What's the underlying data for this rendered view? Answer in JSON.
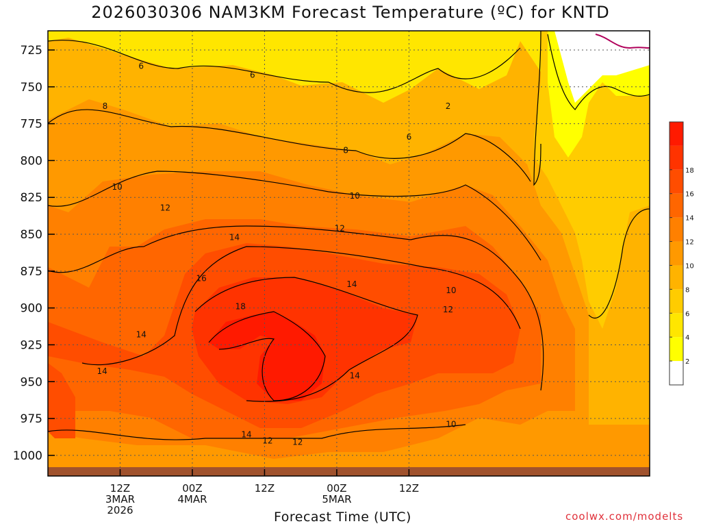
{
  "title": "2026030306 NAM3KM Forecast Temperature (ºC) for KNTD",
  "xaxis_title": "Forecast Time (UTC)",
  "credit": "coolwx.com/modelts",
  "colors": {
    "legend": [
      "#ffffff",
      "#ffff00",
      "#ffe600",
      "#ffcc00",
      "#ffb300",
      "#ff9900",
      "#ff8000",
      "#ff6600",
      "#ff4d00",
      "#ff3300",
      "#ff1a00"
    ],
    "ground": "#a0522d",
    "contour": "#000000",
    "freezing_line": "#b0005a"
  },
  "chart_data": {
    "type": "heatmap",
    "title": "2026030306 NAM3KM Forecast Temperature (ºC) for KNTD",
    "xlabel": "Forecast Time (UTC)",
    "ylabel": "",
    "y_axis": {
      "ticks": [
        725,
        750,
        775,
        800,
        825,
        850,
        875,
        900,
        925,
        950,
        975,
        1000
      ],
      "range": [
        712,
        1014
      ],
      "inverted": true
    },
    "x_axis": {
      "range_hours": [
        -6,
        94
      ],
      "ticks": [
        {
          "hour": 6,
          "lines": [
            "12Z",
            "3MAR",
            "2026"
          ]
        },
        {
          "hour": 18,
          "lines": [
            "00Z",
            "4MAR"
          ]
        },
        {
          "hour": 30,
          "lines": [
            "12Z"
          ]
        },
        {
          "hour": 42,
          "lines": [
            "00Z",
            "5MAR"
          ]
        },
        {
          "hour": 54,
          "lines": [
            "12Z"
          ]
        }
      ]
    },
    "grid": true,
    "legend": {
      "placement": "right",
      "labels": [
        "2",
        "4",
        "6",
        "8",
        "10",
        "12",
        "14",
        "16",
        "18"
      ]
    },
    "contour_labels": [
      {
        "text": "6",
        "hour": 9.5,
        "p": 736
      },
      {
        "text": "6",
        "hour": 28,
        "p": 742
      },
      {
        "text": "8",
        "hour": 3.5,
        "p": 763
      },
      {
        "text": "2",
        "hour": 60.5,
        "p": 763
      },
      {
        "text": "6",
        "hour": 54,
        "p": 784
      },
      {
        "text": "8",
        "hour": 43.5,
        "p": 793
      },
      {
        "text": "10",
        "hour": 5.5,
        "p": 818
      },
      {
        "text": "10",
        "hour": 45,
        "p": 824
      },
      {
        "text": "12",
        "hour": 13.5,
        "p": 832
      },
      {
        "text": "12",
        "hour": 42.5,
        "p": 846
      },
      {
        "text": "14",
        "hour": 25,
        "p": 852
      },
      {
        "text": "14",
        "hour": 44.5,
        "p": 884
      },
      {
        "text": "16",
        "hour": 19.5,
        "p": 880
      },
      {
        "text": "10",
        "hour": 61,
        "p": 888
      },
      {
        "text": "18",
        "hour": 26,
        "p": 899
      },
      {
        "text": "12",
        "hour": 60.5,
        "p": 901
      },
      {
        "text": "14",
        "hour": 9.5,
        "p": 918
      },
      {
        "text": "14",
        "hour": 3,
        "p": 943
      },
      {
        "text": "14",
        "hour": 45,
        "p": 946
      },
      {
        "text": "10",
        "hour": 61,
        "p": 979
      },
      {
        "text": "12",
        "hour": 35.5,
        "p": 991
      },
      {
        "text": "14",
        "hour": 27,
        "p": 986
      },
      {
        "text": "12",
        "hour": 30.5,
        "p": 990
      }
    ]
  }
}
